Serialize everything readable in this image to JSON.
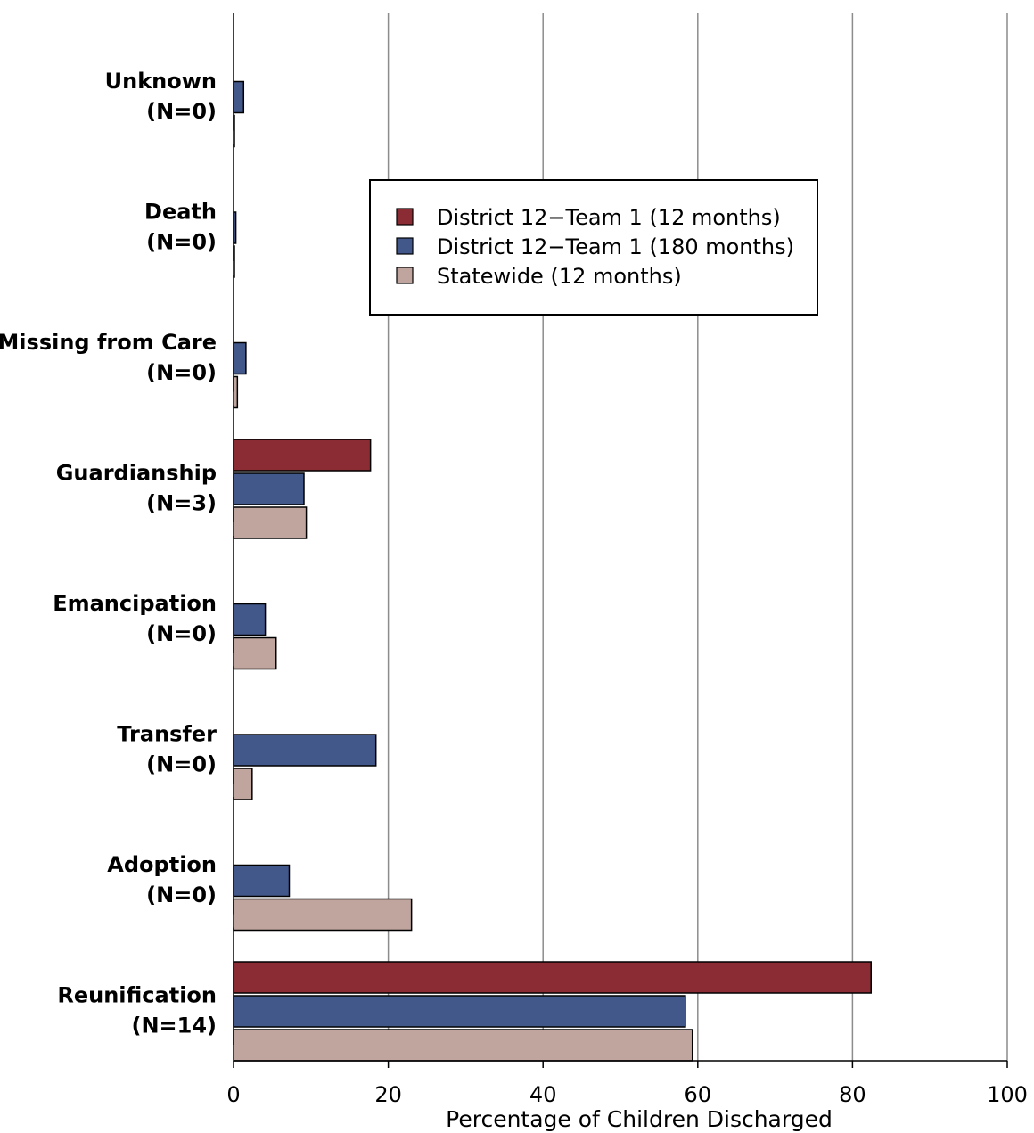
{
  "chart_data": {
    "type": "bar",
    "orientation": "horizontal",
    "title": "",
    "xlabel": "Percentage of Children Discharged",
    "ylabel": "",
    "xlim": [
      0,
      100
    ],
    "xticks": [
      "0",
      "20",
      "40",
      "60",
      "80",
      "100"
    ],
    "grid": "vertical",
    "legend_position": "top-center",
    "categories": [
      {
        "name": "Unknown",
        "n": "(N=0)"
      },
      {
        "name": "Death",
        "n": "(N=0)"
      },
      {
        "name": "Missing from Care",
        "n": "(N=0)"
      },
      {
        "name": "Guardianship",
        "n": "(N=3)"
      },
      {
        "name": "Emancipation",
        "n": "(N=0)"
      },
      {
        "name": "Transfer",
        "n": "(N=0)"
      },
      {
        "name": "Adoption",
        "n": "(N=0)"
      },
      {
        "name": "Reunification",
        "n": "(N=14)"
      }
    ],
    "series": [
      {
        "name": "District 12−Team 1 (12 months)",
        "color": "#8b2c34",
        "values": [
          0,
          0,
          0,
          17.7,
          0,
          0,
          0,
          82.4
        ]
      },
      {
        "name": "District 12−Team 1 (180 months)",
        "color": "#42578a",
        "values": [
          1.3,
          0.3,
          1.6,
          9.1,
          4.1,
          18.4,
          7.2,
          58.4
        ]
      },
      {
        "name": "Statewide (12 months)",
        "color": "#bfa59e",
        "values": [
          0.1,
          0.1,
          0.5,
          9.4,
          5.5,
          2.4,
          23.0,
          59.3
        ]
      }
    ]
  }
}
